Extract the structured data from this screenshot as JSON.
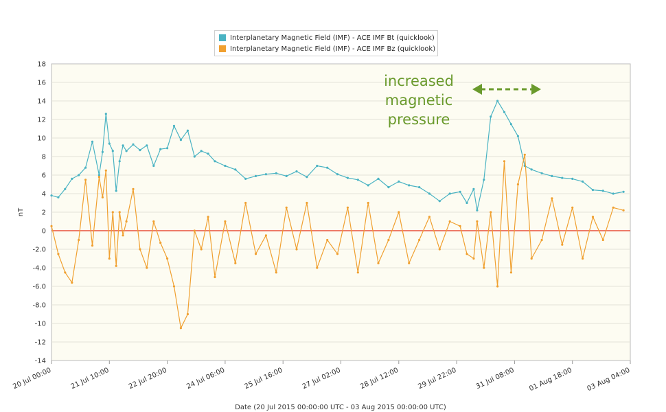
{
  "chart_data": {
    "type": "line",
    "title": "",
    "xlabel": "Date (20 Jul 2015 00:00:00 UTC - 03 Aug 2015 00:00:00 UTC)",
    "ylabel": "nT",
    "ylim": [
      -14,
      18
    ],
    "xlim": [
      "2015-07-20T00:00",
      "2015-08-03T04:00"
    ],
    "grid": true,
    "legend_position": "top-center",
    "y_ticks": [
      "18",
      "16",
      "14",
      "12",
      "10",
      "8",
      "6",
      "4",
      "2",
      "0",
      "-2.0",
      "-4.0",
      "-6.0",
      "-8.0",
      "-10",
      "-12",
      "-14"
    ],
    "x_ticks": [
      "20 Jul 00:00",
      "21 Jul 10:00",
      "22 Jul 20:00",
      "24 Jul 06:00",
      "25 Jul 16:00",
      "27 Jul 02:00",
      "28 Jul 12:00",
      "29 Jul 22:00",
      "31 Jul 08:00",
      "01 Aug 18:00",
      "03 Aug 04:00"
    ],
    "reference_line": {
      "y": 0,
      "color": "#e8503a"
    },
    "annotation": {
      "lines": [
        "increased",
        "magnetic",
        "pressure"
      ],
      "color": "#6a9a2c",
      "arrow": "double-headed dashed"
    },
    "series": [
      {
        "name": "Interplanetary Magnetic Field (IMF) - ACE IMF Bt (quicklook)",
        "color": "#4ab3c3",
        "x": [
          "2015-07-20T00:00",
          "2015-07-20T04:00",
          "2015-07-20T08:00",
          "2015-07-20T12:00",
          "2015-07-20T16:00",
          "2015-07-20T20:00",
          "2015-07-21T00:00",
          "2015-07-21T04:00",
          "2015-07-21T06:00",
          "2015-07-21T08:00",
          "2015-07-21T10:00",
          "2015-07-21T12:00",
          "2015-07-21T14:00",
          "2015-07-21T16:00",
          "2015-07-21T18:00",
          "2015-07-21T20:00",
          "2015-07-22T00:00",
          "2015-07-22T04:00",
          "2015-07-22T08:00",
          "2015-07-22T12:00",
          "2015-07-22T16:00",
          "2015-07-22T20:00",
          "2015-07-23T00:00",
          "2015-07-23T04:00",
          "2015-07-23T08:00",
          "2015-07-23T12:00",
          "2015-07-23T16:00",
          "2015-07-23T20:00",
          "2015-07-24T00:00",
          "2015-07-24T06:00",
          "2015-07-24T12:00",
          "2015-07-24T18:00",
          "2015-07-25T00:00",
          "2015-07-25T06:00",
          "2015-07-25T12:00",
          "2015-07-25T18:00",
          "2015-07-26T00:00",
          "2015-07-26T06:00",
          "2015-07-26T12:00",
          "2015-07-26T18:00",
          "2015-07-27T00:00",
          "2015-07-27T06:00",
          "2015-07-27T12:00",
          "2015-07-27T18:00",
          "2015-07-28T00:00",
          "2015-07-28T06:00",
          "2015-07-28T12:00",
          "2015-07-28T18:00",
          "2015-07-29T00:00",
          "2015-07-29T06:00",
          "2015-07-29T12:00",
          "2015-07-29T18:00",
          "2015-07-30T00:00",
          "2015-07-30T04:00",
          "2015-07-30T08:00",
          "2015-07-30T10:00",
          "2015-07-30T14:00",
          "2015-07-30T18:00",
          "2015-07-30T22:00",
          "2015-07-31T02:00",
          "2015-07-31T06:00",
          "2015-07-31T10:00",
          "2015-07-31T14:00",
          "2015-07-31T18:00",
          "2015-08-01T00:00",
          "2015-08-01T06:00",
          "2015-08-01T12:00",
          "2015-08-01T18:00",
          "2015-08-02T00:00",
          "2015-08-02T06:00",
          "2015-08-02T12:00",
          "2015-08-02T18:00",
          "2015-08-03T00:00"
        ],
        "values": [
          3.8,
          3.6,
          4.5,
          5.6,
          6.0,
          6.8,
          9.6,
          6.0,
          8.5,
          12.6,
          9.4,
          8.6,
          4.3,
          7.5,
          9.2,
          8.6,
          9.3,
          8.7,
          9.2,
          7.0,
          8.8,
          8.9,
          11.3,
          9.8,
          10.8,
          8.0,
          8.6,
          8.3,
          7.5,
          7.0,
          6.6,
          5.6,
          5.9,
          6.1,
          6.2,
          5.9,
          6.4,
          5.8,
          7.0,
          6.8,
          6.1,
          5.7,
          5.5,
          4.9,
          5.6,
          4.7,
          5.3,
          4.9,
          4.7,
          4.0,
          3.2,
          4.0,
          4.2,
          3.0,
          4.5,
          2.2,
          5.5,
          12.3,
          14.0,
          12.8,
          11.5,
          10.2,
          7.0,
          6.6,
          6.2,
          5.9,
          5.7,
          5.6,
          5.3,
          4.4,
          4.3,
          4.0,
          4.2
        ]
      },
      {
        "name": "Interplanetary Magnetic Field (IMF) - ACE IMF Bz (quicklook)",
        "color": "#f0a030",
        "x": [
          "2015-07-20T00:00",
          "2015-07-20T04:00",
          "2015-07-20T08:00",
          "2015-07-20T12:00",
          "2015-07-20T16:00",
          "2015-07-20T20:00",
          "2015-07-21T00:00",
          "2015-07-21T04:00",
          "2015-07-21T06:00",
          "2015-07-21T08:00",
          "2015-07-21T10:00",
          "2015-07-21T12:00",
          "2015-07-21T14:00",
          "2015-07-21T16:00",
          "2015-07-21T18:00",
          "2015-07-21T20:00",
          "2015-07-22T00:00",
          "2015-07-22T04:00",
          "2015-07-22T08:00",
          "2015-07-22T12:00",
          "2015-07-22T16:00",
          "2015-07-22T20:00",
          "2015-07-23T00:00",
          "2015-07-23T04:00",
          "2015-07-23T08:00",
          "2015-07-23T12:00",
          "2015-07-23T16:00",
          "2015-07-23T20:00",
          "2015-07-24T00:00",
          "2015-07-24T06:00",
          "2015-07-24T12:00",
          "2015-07-24T18:00",
          "2015-07-25T00:00",
          "2015-07-25T06:00",
          "2015-07-25T12:00",
          "2015-07-25T18:00",
          "2015-07-26T00:00",
          "2015-07-26T06:00",
          "2015-07-26T12:00",
          "2015-07-26T18:00",
          "2015-07-27T00:00",
          "2015-07-27T06:00",
          "2015-07-27T12:00",
          "2015-07-27T18:00",
          "2015-07-28T00:00",
          "2015-07-28T06:00",
          "2015-07-28T12:00",
          "2015-07-28T18:00",
          "2015-07-29T00:00",
          "2015-07-29T06:00",
          "2015-07-29T12:00",
          "2015-07-29T18:00",
          "2015-07-30T00:00",
          "2015-07-30T04:00",
          "2015-07-30T08:00",
          "2015-07-30T10:00",
          "2015-07-30T14:00",
          "2015-07-30T18:00",
          "2015-07-30T22:00",
          "2015-07-31T02:00",
          "2015-07-31T06:00",
          "2015-07-31T10:00",
          "2015-07-31T14:00",
          "2015-07-31T18:00",
          "2015-08-01T00:00",
          "2015-08-01T06:00",
          "2015-08-01T12:00",
          "2015-08-01T18:00",
          "2015-08-02T00:00",
          "2015-08-02T06:00",
          "2015-08-02T12:00",
          "2015-08-02T18:00",
          "2015-08-03T00:00"
        ],
        "values": [
          0.5,
          -2.5,
          -4.5,
          -5.6,
          -1.0,
          5.5,
          -1.6,
          5.8,
          3.6,
          6.5,
          -3.0,
          2.0,
          -3.8,
          2.0,
          -0.5,
          1.0,
          4.5,
          -2.0,
          -4.0,
          1.0,
          -1.3,
          -3.0,
          -6.0,
          -10.5,
          -9.0,
          0.0,
          -2.0,
          1.5,
          -5.0,
          1.0,
          -3.5,
          3.0,
          -2.5,
          -0.5,
          -4.5,
          2.5,
          -2.0,
          3.0,
          -4.0,
          -1.0,
          -2.5,
          2.5,
          -4.5,
          3.0,
          -3.5,
          -1.0,
          2.0,
          -3.5,
          -1.0,
          1.5,
          -2.0,
          1.0,
          0.5,
          -2.5,
          -3.0,
          1.0,
          -4.0,
          2.0,
          -6.0,
          7.5,
          -4.5,
          5.0,
          8.2,
          -3.0,
          -1.0,
          3.5,
          -1.5,
          2.5,
          -3.0,
          1.5,
          -1.0,
          2.5,
          2.2
        ]
      }
    ]
  }
}
